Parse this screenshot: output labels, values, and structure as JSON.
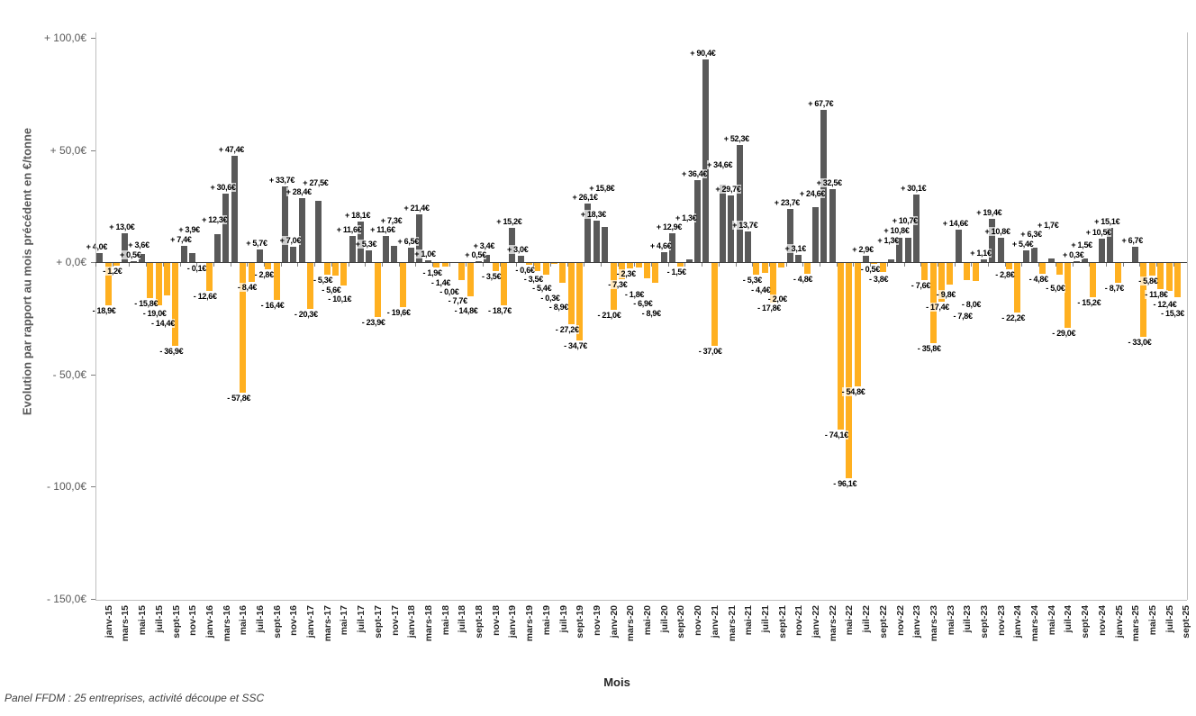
{
  "footer": "Panel FFDM : 25 entreprises, activité découpe et SSC",
  "y_axis": {
    "title": "Evolution par rapport au mois précédent en €/tonne",
    "ticks": [
      "+ 100,0€",
      "+ 50,0€",
      "+ 0,0€",
      "- 50,0€",
      "- 100,0€",
      "- 150,0€"
    ],
    "tick_values": [
      100,
      50,
      0,
      -50,
      -100,
      -150
    ]
  },
  "x_axis": {
    "title": "Mois",
    "visible_ticks": [
      "janv-15",
      "mars-15",
      "mai-15",
      "juil-15",
      "sept-15",
      "nov-15",
      "janv-16",
      "mars-16",
      "mai-16",
      "juil-16",
      "sept-16",
      "nov-16",
      "janv-17",
      "mars-17",
      "mai-17",
      "juil-17",
      "sept-17",
      "nov-17",
      "janv-18",
      "mars-18",
      "mai-18",
      "juil-18",
      "sept-18",
      "nov-18",
      "janv-19",
      "mars-19",
      "mai-19",
      "juil-19",
      "sept-19",
      "nov-19",
      "janv-20",
      "mars-20",
      "mai-20",
      "juil-20",
      "sept-20",
      "nov-20",
      "janv-21",
      "mars-21",
      "mai-21",
      "juil-21",
      "sept-21",
      "nov-21",
      "janv-22",
      "mars-22",
      "mai-22",
      "juil-22",
      "sept-22",
      "nov-22",
      "janv-23",
      "mars-23",
      "mai-23",
      "juil-23",
      "sept-23",
      "nov-23",
      "janv-24",
      "mars-24",
      "mai-24",
      "juil-24",
      "sept-24",
      "nov-24",
      "janv-25",
      "mars-25",
      "mai-25",
      "juil-25",
      "sept-25"
    ]
  },
  "chart_data": {
    "type": "bar",
    "title": "",
    "xlabel": "Mois",
    "ylabel": "Evolution par rapport au mois précédent en €/tonne",
    "ylim": [
      -150,
      100
    ],
    "grid": false,
    "legend": "none",
    "first_month": "janv-15",
    "last_month": "sept-25",
    "positive_color": "#595959",
    "negative_color": "#FFB020",
    "values": [
      4.0,
      -18.9,
      -1.2,
      13.0,
      0.5,
      3.6,
      -15.8,
      -19.0,
      -14.4,
      -36.9,
      7.4,
      3.9,
      -0.1,
      -12.6,
      12.3,
      30.6,
      47.4,
      -57.8,
      -8.4,
      5.7,
      -2.8,
      -16.4,
      33.7,
      7.0,
      28.4,
      -20.3,
      27.5,
      -5.3,
      -5.6,
      -10.1,
      11.6,
      18.1,
      5.3,
      -23.9,
      11.6,
      7.3,
      -19.6,
      6.5,
      21.4,
      1.0,
      -1.9,
      -1.4,
      -0.0,
      -7.7,
      -14.8,
      0.5,
      3.4,
      -3.5,
      -18.7,
      15.2,
      3.0,
      -0.6,
      -3.5,
      -5.4,
      -0.3,
      -8.9,
      -27.2,
      -34.7,
      26.1,
      18.3,
      15.8,
      -21.0,
      -7.3,
      -2.3,
      -1.8,
      -6.9,
      -8.9,
      4.6,
      12.9,
      -1.5,
      1.3,
      36.4,
      90.4,
      -37.0,
      34.6,
      29.7,
      52.3,
      13.7,
      -5.3,
      -4.4,
      -17.8,
      -2.0,
      23.7,
      3.1,
      -4.8,
      24.6,
      67.7,
      32.5,
      -74.1,
      -96.1,
      -54.8,
      2.9,
      -0.5,
      -3.8,
      1.3,
      10.8,
      10.7,
      30.1,
      -7.6,
      -35.8,
      -17.4,
      -9.8,
      14.6,
      -7.8,
      -8.0,
      1.1,
      19.4,
      10.8,
      -2.8,
      -22.2,
      5.4,
      6.3,
      -4.8,
      1.7,
      -5.0,
      -29.0,
      0.3,
      1.5,
      -15.2,
      10.5,
      15.1,
      -8.7,
      null,
      6.7,
      -33.0,
      -5.8,
      -11.8,
      -12.4,
      -15.3
    ],
    "labels": [
      "+ 4,0€",
      "- 18,9€",
      "- 1,2€",
      "+ 13,0€",
      "+ 0,5€",
      "+ 3,6€",
      "- 15,8€",
      "- 19,0€",
      "- 14,4€",
      "- 36,9€",
      "+ 7,4€",
      "+ 3,9€",
      "- 0,1€",
      "- 12,6€",
      "+ 12,3€",
      "+ 30,6€",
      "+ 47,4€",
      "- 57,8€",
      "- 8,4€",
      "+ 5,7€",
      "- 2,8€",
      "- 16,4€",
      "+ 33,7€",
      "+ 7,0€",
      "+ 28,4€",
      "- 20,3€",
      "+ 27,5€",
      "- 5,3€",
      "- 5,6€",
      "- 10,1€",
      "+ 11,6€",
      "+ 18,1€",
      "+ 5,3€",
      "- 23,9€",
      "+ 11,6€",
      "+ 7,3€",
      "- 19,6€",
      "+ 6,5€",
      "+ 21,4€",
      "+ 1,0€",
      "- 1,9€",
      "- 1,4€",
      "- 0,0€",
      "- 7,7€",
      "- 14,8€",
      "+ 0,5€",
      "+ 3,4€",
      "- 3,5€",
      "- 18,7€",
      "+ 15,2€",
      "+ 3,0€",
      "- 0,6€",
      "- 3,5€",
      "- 5,4€",
      "- 0,3€",
      "- 8,9€",
      "- 27,2€",
      "- 34,7€",
      "+ 26,1€",
      "+ 18,3€",
      "+ 15,8€",
      "- 21,0€",
      "- 7,3€",
      "- 2,3€",
      "- 1,8€",
      "- 6,9€",
      "- 8,9€",
      "+ 4,6€",
      "+ 12,9€",
      "- 1,5€",
      "+ 1,3€",
      "+ 36,4€",
      "+ 90,4€",
      "- 37,0€",
      "+ 34,6€",
      "+ 29,7€",
      "+ 52,3€",
      "+ 13,7€",
      "- 5,3€",
      "- 4,4€",
      "- 17,8€",
      "- 2,0€",
      "+ 23,7€",
      "+ 3,1€",
      "- 4,8€",
      "+ 24,6€",
      "+ 67,7€",
      "+ 32,5€",
      "- 74,1€",
      "- 96,1€",
      "- 54,8€",
      "+ 2,9€",
      "- 0,5€",
      "- 3,8€",
      "+ 1,3€",
      "+ 10,8€",
      "+ 10,7€",
      "+ 30,1€",
      "- 7,6€",
      "- 35,8€",
      "- 17,4€",
      "- 9,8€",
      "+ 14,6€",
      "- 7,8€",
      "- 8,0€",
      "+ 1,1€",
      "+ 19,4€",
      "+ 10,8€",
      "- 2,8€",
      "- 22,2€",
      "+ 5,4€",
      "+ 6,3€",
      "- 4,8€",
      "+ 1,7€",
      "- 5,0€",
      "- 29,0€",
      "+ 0,3€",
      "+ 1,5€",
      "- 15,2€",
      "+ 10,5€",
      "+ 15,1€",
      "- 8,7€",
      "",
      "+ 6,7€",
      "- 33,0€",
      "- 5,8€",
      "- 11,8€",
      "- 12,4€",
      "- 15,3€"
    ]
  }
}
